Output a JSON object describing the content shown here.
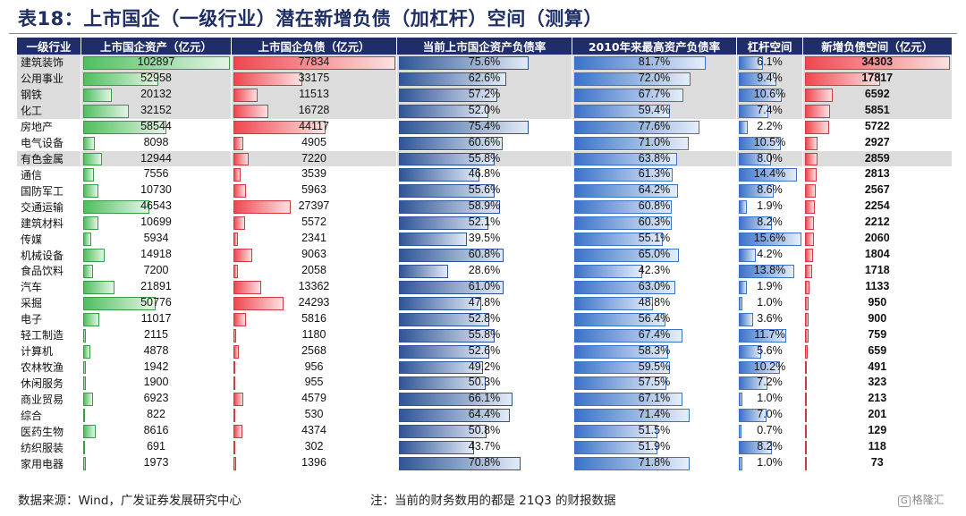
{
  "title": "表18：上市国企（一级行业）潜在新增负债（加杠杆）空间（测算）",
  "headers": [
    "一级行业",
    "上市国企资产（亿元）",
    "上市国企负债（亿元）",
    "当前上市国企资产负债率",
    "2010年来最高资产负债率",
    "杠杆空间",
    "新增负债空间（亿元）"
  ],
  "rows": [
    {
      "name": "建筑装饰",
      "asset": "102897",
      "debt": "77834",
      "cur": "75.6%",
      "max": "81.7%",
      "lev": "6.1%",
      "new": "34303",
      "hl": true
    },
    {
      "name": "公用事业",
      "asset": "52958",
      "debt": "33175",
      "cur": "62.6%",
      "max": "72.0%",
      "lev": "9.4%",
      "new": "17817",
      "hl": true
    },
    {
      "name": "钢铁",
      "asset": "20132",
      "debt": "11513",
      "cur": "57.2%",
      "max": "67.7%",
      "lev": "10.6%",
      "new": "6592",
      "hl": true
    },
    {
      "name": "化工",
      "asset": "32152",
      "debt": "16728",
      "cur": "52.0%",
      "max": "59.4%",
      "lev": "7.4%",
      "new": "5851",
      "hl": true
    },
    {
      "name": "房地产",
      "asset": "58544",
      "debt": "44117",
      "cur": "75.4%",
      "max": "77.6%",
      "lev": "2.2%",
      "new": "5722",
      "hl": false
    },
    {
      "name": "电气设备",
      "asset": "8098",
      "debt": "4905",
      "cur": "60.6%",
      "max": "71.0%",
      "lev": "10.5%",
      "new": "2927",
      "hl": false
    },
    {
      "name": "有色金属",
      "asset": "12944",
      "debt": "7220",
      "cur": "55.8%",
      "max": "63.8%",
      "lev": "8.0%",
      "new": "2859",
      "hl": true
    },
    {
      "name": "通信",
      "asset": "7556",
      "debt": "3539",
      "cur": "46.8%",
      "max": "61.3%",
      "lev": "14.4%",
      "new": "2813",
      "hl": false
    },
    {
      "name": "国防军工",
      "asset": "10730",
      "debt": "5963",
      "cur": "55.6%",
      "max": "64.2%",
      "lev": "8.6%",
      "new": "2567",
      "hl": false
    },
    {
      "name": "交通运输",
      "asset": "46543",
      "debt": "27397",
      "cur": "58.9%",
      "max": "60.8%",
      "lev": "1.9%",
      "new": "2254",
      "hl": false
    },
    {
      "name": "建筑材料",
      "asset": "10699",
      "debt": "5572",
      "cur": "52.1%",
      "max": "60.3%",
      "lev": "8.2%",
      "new": "2212",
      "hl": false
    },
    {
      "name": "传媒",
      "asset": "5934",
      "debt": "2341",
      "cur": "39.5%",
      "max": "55.1%",
      "lev": "15.6%",
      "new": "2060",
      "hl": false
    },
    {
      "name": "机械设备",
      "asset": "14918",
      "debt": "9063",
      "cur": "60.8%",
      "max": "65.0%",
      "lev": "4.2%",
      "new": "1804",
      "hl": false
    },
    {
      "name": "食品饮料",
      "asset": "7200",
      "debt": "2058",
      "cur": "28.6%",
      "max": "42.3%",
      "lev": "13.8%",
      "new": "1718",
      "hl": false
    },
    {
      "name": "汽车",
      "asset": "21891",
      "debt": "13362",
      "cur": "61.0%",
      "max": "63.0%",
      "lev": "1.9%",
      "new": "1133",
      "hl": false
    },
    {
      "name": "采掘",
      "asset": "50776",
      "debt": "24293",
      "cur": "47.8%",
      "max": "48.8%",
      "lev": "1.0%",
      "new": "950",
      "hl": false
    },
    {
      "name": "电子",
      "asset": "11017",
      "debt": "5816",
      "cur": "52.8%",
      "max": "56.4%",
      "lev": "3.6%",
      "new": "900",
      "hl": false
    },
    {
      "name": "轻工制造",
      "asset": "2115",
      "debt": "1180",
      "cur": "55.8%",
      "max": "67.4%",
      "lev": "11.7%",
      "new": "759",
      "hl": false
    },
    {
      "name": "计算机",
      "asset": "4878",
      "debt": "2568",
      "cur": "52.6%",
      "max": "58.3%",
      "lev": "5.6%",
      "new": "659",
      "hl": false
    },
    {
      "name": "农林牧渔",
      "asset": "1942",
      "debt": "956",
      "cur": "49.2%",
      "max": "59.5%",
      "lev": "10.2%",
      "new": "491",
      "hl": false
    },
    {
      "name": "休闲服务",
      "asset": "1900",
      "debt": "955",
      "cur": "50.3%",
      "max": "57.5%",
      "lev": "7.2%",
      "new": "323",
      "hl": false
    },
    {
      "name": "商业贸易",
      "asset": "6923",
      "debt": "4579",
      "cur": "66.1%",
      "max": "67.1%",
      "lev": "1.0%",
      "new": "213",
      "hl": false
    },
    {
      "name": "综合",
      "asset": "822",
      "debt": "530",
      "cur": "64.4%",
      "max": "71.4%",
      "lev": "7.0%",
      "new": "201",
      "hl": false
    },
    {
      "name": "医药生物",
      "asset": "8616",
      "debt": "4374",
      "cur": "50.8%",
      "max": "51.5%",
      "lev": "0.7%",
      "new": "129",
      "hl": false
    },
    {
      "name": "纺织服装",
      "asset": "691",
      "debt": "302",
      "cur": "43.7%",
      "max": "51.9%",
      "lev": "8.2%",
      "new": "118",
      "hl": false
    },
    {
      "name": "家用电器",
      "asset": "1973",
      "debt": "1396",
      "cur": "70.8%",
      "max": "71.8%",
      "lev": "1.0%",
      "new": "73",
      "hl": false
    }
  ],
  "footer": {
    "source": "数据来源：Wind，广发证券发展研究中心",
    "note": "注：当前的财务数用的都是 21Q3 的财报数据"
  },
  "watermark": "格隆汇",
  "colors": {
    "header_bg": "#1f2d6b",
    "asset_bar": "#4fbf5f",
    "debt_bar": "#f0464f",
    "ratio_bar": "#2f5597",
    "highlight": "#dcdcdc"
  }
}
